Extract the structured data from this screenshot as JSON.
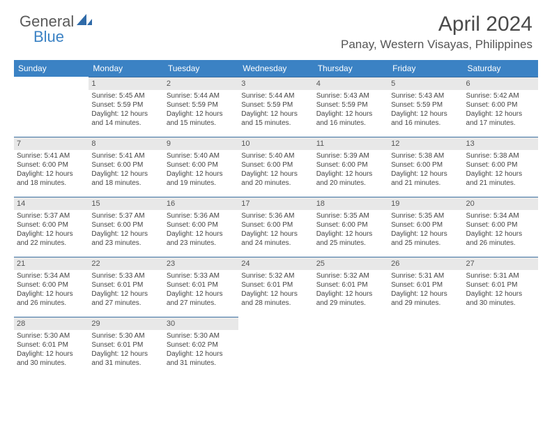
{
  "logo": {
    "text1": "General",
    "text2": "Blue"
  },
  "title": "April 2024",
  "location": "Panay, Western Visayas, Philippines",
  "colors": {
    "header_bg": "#3b82c4",
    "header_text": "#ffffff",
    "daynum_bg": "#e8e8e8",
    "row_border": "#3b6fa0",
    "body_text": "#444444",
    "title_text": "#4a4a4a"
  },
  "daynames": [
    "Sunday",
    "Monday",
    "Tuesday",
    "Wednesday",
    "Thursday",
    "Friday",
    "Saturday"
  ],
  "weeks": [
    [
      null,
      {
        "n": "1",
        "sr": "5:45 AM",
        "ss": "5:59 PM",
        "dl": "12 hours and 14 minutes."
      },
      {
        "n": "2",
        "sr": "5:44 AM",
        "ss": "5:59 PM",
        "dl": "12 hours and 15 minutes."
      },
      {
        "n": "3",
        "sr": "5:44 AM",
        "ss": "5:59 PM",
        "dl": "12 hours and 15 minutes."
      },
      {
        "n": "4",
        "sr": "5:43 AM",
        "ss": "5:59 PM",
        "dl": "12 hours and 16 minutes."
      },
      {
        "n": "5",
        "sr": "5:43 AM",
        "ss": "5:59 PM",
        "dl": "12 hours and 16 minutes."
      },
      {
        "n": "6",
        "sr": "5:42 AM",
        "ss": "6:00 PM",
        "dl": "12 hours and 17 minutes."
      }
    ],
    [
      {
        "n": "7",
        "sr": "5:41 AM",
        "ss": "6:00 PM",
        "dl": "12 hours and 18 minutes."
      },
      {
        "n": "8",
        "sr": "5:41 AM",
        "ss": "6:00 PM",
        "dl": "12 hours and 18 minutes."
      },
      {
        "n": "9",
        "sr": "5:40 AM",
        "ss": "6:00 PM",
        "dl": "12 hours and 19 minutes."
      },
      {
        "n": "10",
        "sr": "5:40 AM",
        "ss": "6:00 PM",
        "dl": "12 hours and 20 minutes."
      },
      {
        "n": "11",
        "sr": "5:39 AM",
        "ss": "6:00 PM",
        "dl": "12 hours and 20 minutes."
      },
      {
        "n": "12",
        "sr": "5:38 AM",
        "ss": "6:00 PM",
        "dl": "12 hours and 21 minutes."
      },
      {
        "n": "13",
        "sr": "5:38 AM",
        "ss": "6:00 PM",
        "dl": "12 hours and 21 minutes."
      }
    ],
    [
      {
        "n": "14",
        "sr": "5:37 AM",
        "ss": "6:00 PM",
        "dl": "12 hours and 22 minutes."
      },
      {
        "n": "15",
        "sr": "5:37 AM",
        "ss": "6:00 PM",
        "dl": "12 hours and 23 minutes."
      },
      {
        "n": "16",
        "sr": "5:36 AM",
        "ss": "6:00 PM",
        "dl": "12 hours and 23 minutes."
      },
      {
        "n": "17",
        "sr": "5:36 AM",
        "ss": "6:00 PM",
        "dl": "12 hours and 24 minutes."
      },
      {
        "n": "18",
        "sr": "5:35 AM",
        "ss": "6:00 PM",
        "dl": "12 hours and 25 minutes."
      },
      {
        "n": "19",
        "sr": "5:35 AM",
        "ss": "6:00 PM",
        "dl": "12 hours and 25 minutes."
      },
      {
        "n": "20",
        "sr": "5:34 AM",
        "ss": "6:00 PM",
        "dl": "12 hours and 26 minutes."
      }
    ],
    [
      {
        "n": "21",
        "sr": "5:34 AM",
        "ss": "6:00 PM",
        "dl": "12 hours and 26 minutes."
      },
      {
        "n": "22",
        "sr": "5:33 AM",
        "ss": "6:01 PM",
        "dl": "12 hours and 27 minutes."
      },
      {
        "n": "23",
        "sr": "5:33 AM",
        "ss": "6:01 PM",
        "dl": "12 hours and 27 minutes."
      },
      {
        "n": "24",
        "sr": "5:32 AM",
        "ss": "6:01 PM",
        "dl": "12 hours and 28 minutes."
      },
      {
        "n": "25",
        "sr": "5:32 AM",
        "ss": "6:01 PM",
        "dl": "12 hours and 29 minutes."
      },
      {
        "n": "26",
        "sr": "5:31 AM",
        "ss": "6:01 PM",
        "dl": "12 hours and 29 minutes."
      },
      {
        "n": "27",
        "sr": "5:31 AM",
        "ss": "6:01 PM",
        "dl": "12 hours and 30 minutes."
      }
    ],
    [
      {
        "n": "28",
        "sr": "5:30 AM",
        "ss": "6:01 PM",
        "dl": "12 hours and 30 minutes."
      },
      {
        "n": "29",
        "sr": "5:30 AM",
        "ss": "6:01 PM",
        "dl": "12 hours and 31 minutes."
      },
      {
        "n": "30",
        "sr": "5:30 AM",
        "ss": "6:02 PM",
        "dl": "12 hours and 31 minutes."
      },
      null,
      null,
      null,
      null
    ]
  ],
  "labels": {
    "sunrise": "Sunrise: ",
    "sunset": "Sunset: ",
    "daylight": "Daylight: "
  }
}
